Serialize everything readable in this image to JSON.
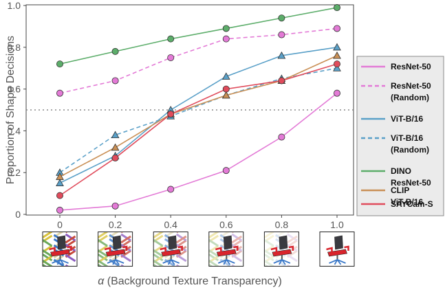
{
  "chart_data": {
    "type": "line",
    "xlabel_symbol": "α",
    "xlabel": " (Background Texture Transparency)",
    "ylabel": "Proportion of Shape Decisions",
    "x": [
      0,
      0.2,
      0.4,
      0.6,
      0.8,
      1.0
    ],
    "x_tick_labels": [
      "0",
      "0.2",
      "0.4",
      "0.6",
      "0.8",
      "1.0"
    ],
    "y_ticks": [
      0,
      0.2,
      0.4,
      0.6,
      0.8,
      1.0
    ],
    "y_tick_labels": [
      "0",
      "0.2",
      "0.4",
      "0.6",
      "0.8",
      "1.0"
    ],
    "xlim": [
      0,
      1
    ],
    "ylim": [
      0,
      1
    ],
    "reference_line": {
      "y": 0.5,
      "style": "dotted",
      "color": "#888888"
    },
    "grid": false,
    "legend_placement": "right",
    "series": [
      {
        "name": [
          "ResNet-50"
        ],
        "color": "#e37ad6",
        "dashed": false,
        "marker": "circle",
        "values": [
          0.02,
          0.04,
          0.12,
          0.21,
          0.37,
          0.58
        ]
      },
      {
        "name": [
          "ResNet-50",
          "(Random)"
        ],
        "color": "#e37ad6",
        "dashed": true,
        "marker": "circle",
        "values": [
          0.58,
          0.64,
          0.75,
          0.84,
          0.86,
          0.89
        ]
      },
      {
        "name": [
          "ViT-B/16"
        ],
        "color": "#5aa0c8",
        "dashed": false,
        "marker": "triangle",
        "values": [
          0.15,
          0.28,
          0.5,
          0.66,
          0.76,
          0.8
        ]
      },
      {
        "name": [
          "ViT-B/16",
          "(Random)"
        ],
        "color": "#5aa0c8",
        "dashed": true,
        "marker": "triangle",
        "values": [
          0.2,
          0.38,
          0.47,
          0.57,
          0.65,
          0.7
        ]
      },
      {
        "name": [
          "DINO",
          "ResNet-50"
        ],
        "color": "#5cad6a",
        "dashed": false,
        "marker": "circle",
        "values": [
          0.72,
          0.78,
          0.84,
          0.89,
          0.94,
          0.99
        ]
      },
      {
        "name": [
          "CLIP",
          "ViT-B/16"
        ],
        "color": "#c98f55",
        "dashed": false,
        "marker": "triangle",
        "values": [
          0.18,
          0.32,
          0.48,
          0.57,
          0.64,
          0.76
        ]
      },
      {
        "name": [
          "SAYCam-S"
        ],
        "color": "#e04c5c",
        "dashed": false,
        "marker": "circle",
        "values": [
          0.09,
          0.27,
          0.48,
          0.6,
          0.64,
          0.72
        ]
      }
    ],
    "thumbnail_alphas": [
      0,
      0.2,
      0.4,
      0.6,
      0.8,
      1.0
    ]
  }
}
